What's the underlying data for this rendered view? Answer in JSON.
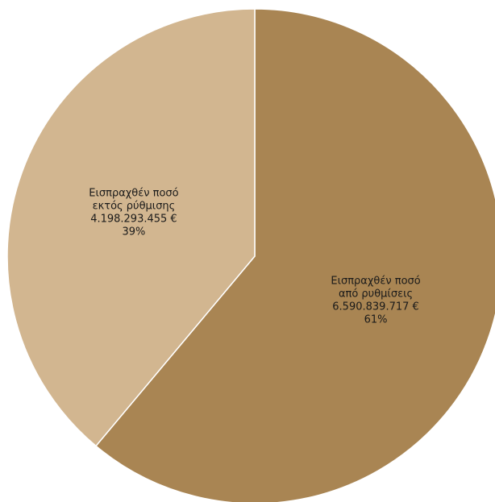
{
  "chart_data": {
    "type": "pie",
    "slices": [
      {
        "name": "Εισπραχθέν ποσό από ρυθμίσεις",
        "label_lines": [
          "Εισπραχθέν ποσό",
          "από ρυθμίσεις"
        ],
        "value": 6590839717,
        "value_label": "6.590.839.717 €",
        "percent_label": "61%",
        "color": "#A98553"
      },
      {
        "name": "Εισπραχθέν ποσό εκτός ρύθμισης",
        "label_lines": [
          "Εισπραχθέν ποσό",
          "εκτός ρύθμισης"
        ],
        "value": 4198293455,
        "value_label": "4.198.293.455 €",
        "percent_label": "39%",
        "color": "#D2B690"
      }
    ],
    "start_angle": "12 o'clock",
    "direction": "clockwise"
  }
}
